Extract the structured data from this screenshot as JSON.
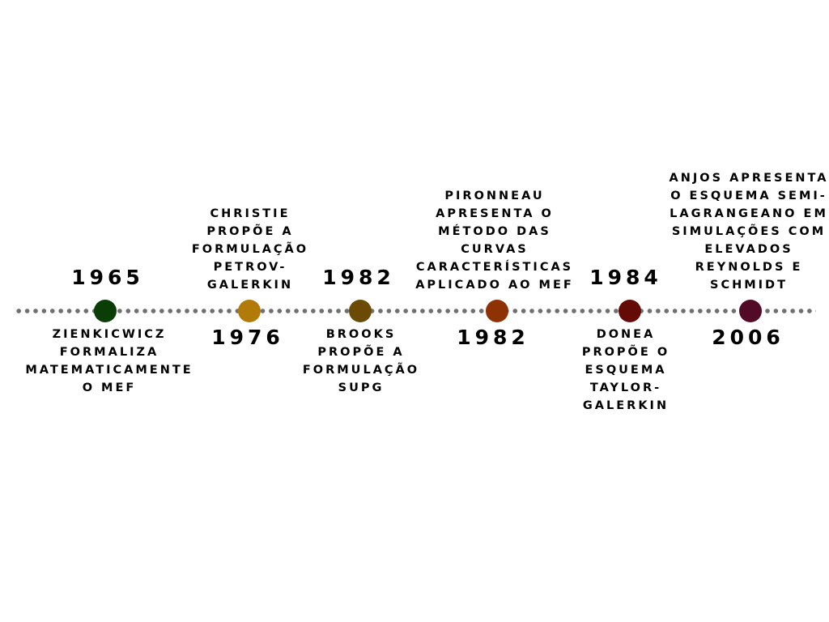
{
  "events": [
    {
      "year": "1965",
      "color": "#0b3d07",
      "lines": [
        "ZIENKICWICZ",
        "FORMALIZA",
        "MATEMATICAMENTE",
        "O MEF"
      ]
    },
    {
      "year": "1976",
      "color": "#b27a09",
      "lines": [
        "CHRISTIE",
        "PROPÕE A",
        "FORMULAÇÃO",
        "PETROV-",
        "GALERKIN"
      ]
    },
    {
      "year": "1982",
      "color": "#6a4a05",
      "lines": [
        "BROOKS",
        "PROPÕE A",
        "FORMULAÇÃO",
        "SUPG"
      ]
    },
    {
      "year": "1982",
      "color": "#8f3203",
      "lines": [
        "PIRONNEAU",
        "APRESENTA O",
        "MÉTODO DAS",
        "CURVAS",
        "CARACTERÍSTICAS",
        "APLICADO AO MEF"
      ]
    },
    {
      "year": "1984",
      "color": "#640b07",
      "lines": [
        "DONEA",
        "PROPÕE O",
        "ESQUEMA",
        "TAYLOR-",
        "GALERKIN"
      ]
    },
    {
      "year": "2006",
      "color": "#520a26",
      "lines": [
        "ANJOS APRESENTA",
        "O ESQUEMA SEMI-",
        "LAGRANGEANO EM",
        "SIMULAÇÕES COM",
        "ELEVADOS",
        "REYNOLDS E",
        "SCHMIDT"
      ]
    }
  ]
}
